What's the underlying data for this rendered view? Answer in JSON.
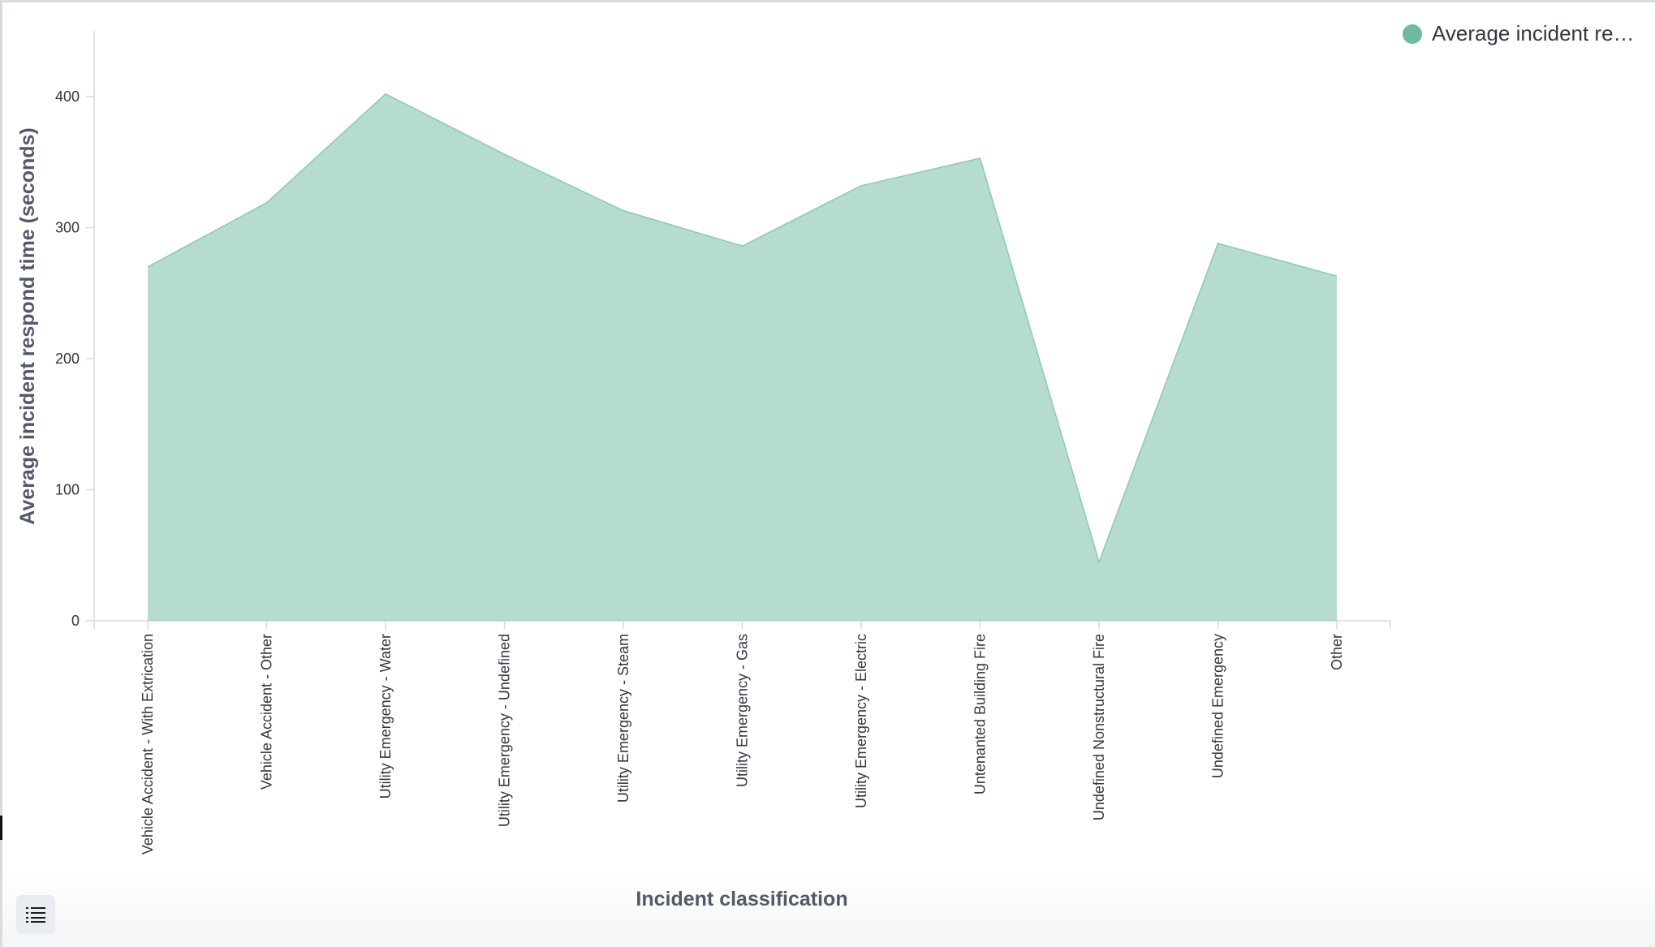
{
  "legend": {
    "label": "Average incident re…",
    "color": "#6dba9e"
  },
  "controls": {
    "list_icon": "list-icon"
  },
  "chart_data": {
    "type": "area",
    "title": "",
    "xlabel": "Incident classification",
    "ylabel": "Average incident respond time (seconds)",
    "ylim": [
      0,
      450
    ],
    "yticks": [
      0,
      100,
      200,
      300,
      400
    ],
    "grid": false,
    "legend_position": "top-right",
    "categories": [
      "Vehicle Accident - With Extrication",
      "Vehicle Accident - Other",
      "Utility Emergency - Water",
      "Utility Emergency - Undefined",
      "Utility Emergency - Steam",
      "Utility Emergency - Gas",
      "Utility Emergency - Electric",
      "Untenanted Building Fire",
      "Undefined Nonstructural Fire",
      "Undefined Emergency",
      "Other"
    ],
    "series": [
      {
        "name": "Average incident re…",
        "color": "#6dba9e",
        "values": [
          270,
          319,
          402,
          356,
          313,
          286,
          332,
          353,
          45,
          288,
          263
        ]
      }
    ]
  }
}
